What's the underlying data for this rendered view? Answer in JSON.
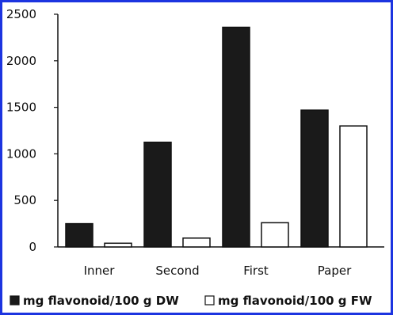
{
  "chart_data": {
    "type": "bar",
    "categories": [
      "Inner",
      "Second",
      "First",
      "Paper"
    ],
    "series": [
      {
        "name": "mg flavonoid/100 g DW",
        "values": [
          250,
          1125,
          2360,
          1470
        ],
        "color": "#1a1a1a"
      },
      {
        "name": "mg flavonoid/100 g FW",
        "values": [
          40,
          95,
          260,
          1300
        ],
        "color": "#ffffff"
      }
    ],
    "yticks": [
      "0",
      "500",
      "1000",
      "1500",
      "2000",
      "2500"
    ],
    "ylim": [
      0,
      2500
    ],
    "title": "",
    "xlabel": "",
    "ylabel": "",
    "grid": false,
    "legend_position": "bottom"
  },
  "colors": {
    "border": "#1c34e0",
    "axis": "#111111"
  }
}
